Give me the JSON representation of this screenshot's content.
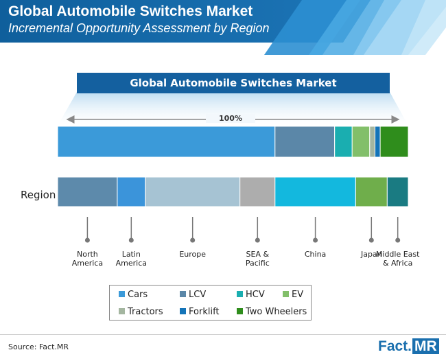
{
  "header": {
    "title": "Global Automobile Switches Market",
    "subtitle": "Incremental Opportunity Assessment by Region"
  },
  "chart_data": {
    "type": "bar",
    "banner": "Global Automobile Switches Market",
    "total_label": "100%",
    "vehicle_bar": {
      "categories": [
        "Cars",
        "LCV",
        "HCV",
        "EV",
        "Tractors",
        "Forklift",
        "Two Wheelers"
      ],
      "values": [
        62,
        17,
        5,
        5,
        1.5,
        1.5,
        8
      ],
      "unit": "%"
    },
    "region_bar": {
      "label": "Region",
      "categories": [
        "North America",
        "Latin America",
        "Europe",
        "SEA & Pacific",
        "China",
        "Japan",
        "Middle East & Africa"
      ],
      "display_names": [
        "North\nAmerica",
        "Latin\nAmerica",
        "Europe",
        "SEA &\nPacific",
        "China",
        "Japan",
        "Middle East\n& Africa"
      ],
      "values": [
        17,
        8,
        27,
        10,
        23,
        9,
        6
      ],
      "unit": "%"
    },
    "legend": {
      "placement": "bottom-center",
      "entries": [
        "Cars",
        "LCV",
        "HCV",
        "EV",
        "Tractors",
        "Forklift",
        "Two Wheelers"
      ]
    },
    "colors": {
      "Cars": "#3b9ad9",
      "LCV": "#5b87a8",
      "HCV": "#1aaeb0",
      "EV": "#82bf6a",
      "Tractors": "#a4b6a0",
      "Forklift": "#1474b8",
      "Two Wheelers": "#2f8d1c",
      "North America": "#5d8aab",
      "Latin America": "#3b94da",
      "Europe": "#a6c3d3",
      "SEA & Pacific": "#adadad",
      "China": "#13b8de",
      "Japan": "#6fae4b",
      "Middle East & Africa": "#1a7b82"
    }
  },
  "footer": {
    "source": "Source: Fact.MR",
    "logo_left": "Fact.",
    "logo_right": "MR"
  }
}
